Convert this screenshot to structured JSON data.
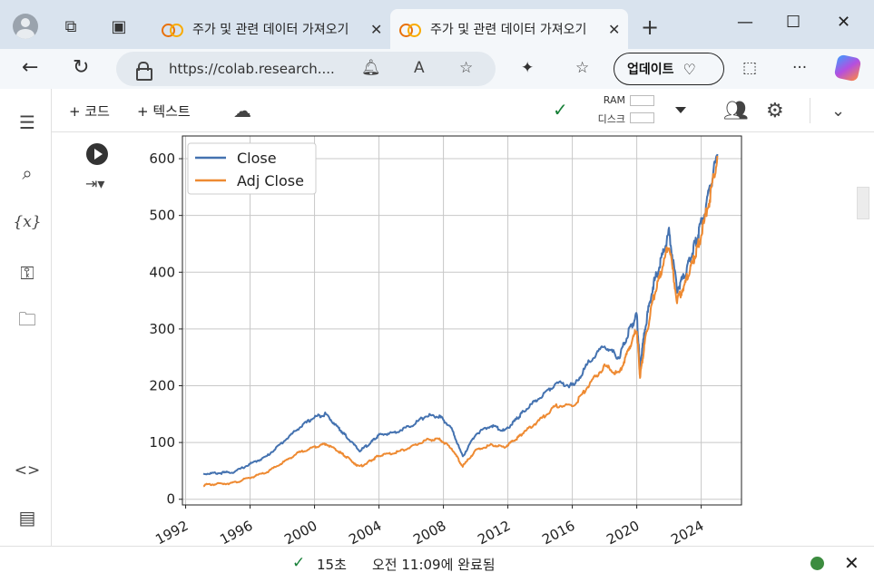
{
  "browser": {
    "tabs": [
      {
        "title": "주가 및 관련 데이터 가져오기",
        "active": false
      },
      {
        "title": "주가 및 관련 데이터 가져오기",
        "active": true
      }
    ],
    "address_url": "https://colab.research....",
    "update_label": "업데이트"
  },
  "colab": {
    "toolbar": {
      "add_code_label": "+ 코드",
      "add_text_label": "+ 텍스트",
      "ram_label": "RAM",
      "disk_label": "디스크"
    },
    "status": {
      "duration": "15초",
      "completed_text": "오전 11:09에 완료됨"
    },
    "colors": {
      "connected": "#188038"
    }
  },
  "chart_data": {
    "type": "line",
    "title": "",
    "xlabel": "",
    "ylabel": "",
    "x_ticks": [
      "1992",
      "1996",
      "2000",
      "2004",
      "2008",
      "2012",
      "2016",
      "2020",
      "2024"
    ],
    "y_ticks": [
      0,
      100,
      200,
      300,
      400,
      500,
      600
    ],
    "xlim": [
      1991.8,
      2026.5
    ],
    "ylim": [
      -10,
      640
    ],
    "grid": true,
    "legend_position": "top-left",
    "x": [
      1993.1,
      1994.0,
      1995.0,
      1996.0,
      1997.0,
      1998.0,
      1999.0,
      2000.0,
      2000.7,
      2001.5,
      2002.0,
      2002.8,
      2003.5,
      2004.0,
      2005.0,
      2006.0,
      2007.0,
      2007.8,
      2008.5,
      2009.2,
      2010.0,
      2011.0,
      2011.8,
      2012.5,
      2013.0,
      2014.0,
      2015.0,
      2016.1,
      2017.0,
      2018.0,
      2018.9,
      2019.5,
      2020.0,
      2020.2,
      2020.5,
      2021.0,
      2021.5,
      2022.0,
      2022.5,
      2023.0,
      2023.5,
      2023.9,
      2024.5,
      2025.0
    ],
    "series": [
      {
        "name": "Close",
        "color": "#4472b0",
        "values": [
          45,
          46,
          48,
          62,
          75,
          100,
          125,
          145,
          150,
          125,
          110,
          85,
          100,
          113,
          118,
          130,
          148,
          145,
          125,
          75,
          115,
          130,
          120,
          140,
          155,
          180,
          205,
          200,
          240,
          270,
          250,
          295,
          325,
          230,
          300,
          375,
          420,
          470,
          370,
          395,
          440,
          475,
          540,
          608
        ]
      },
      {
        "name": "Adj Close",
        "color": "#ee8a32",
        "values": [
          25,
          27,
          29,
          38,
          47,
          64,
          82,
          92,
          98,
          84,
          74,
          57,
          68,
          77,
          82,
          92,
          105,
          105,
          90,
          58,
          86,
          96,
          92,
          106,
          118,
          140,
          165,
          165,
          200,
          235,
          220,
          265,
          300,
          215,
          275,
          350,
          400,
          450,
          350,
          380,
          420,
          455,
          525,
          605
        ]
      }
    ]
  }
}
